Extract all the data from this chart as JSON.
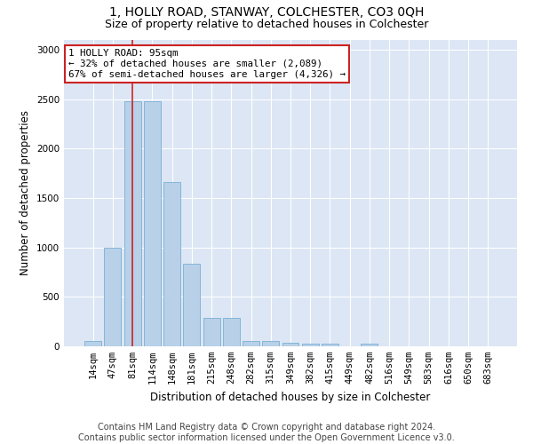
{
  "title": "1, HOLLY ROAD, STANWAY, COLCHESTER, CO3 0QH",
  "subtitle": "Size of property relative to detached houses in Colchester",
  "xlabel": "Distribution of detached houses by size in Colchester",
  "ylabel": "Number of detached properties",
  "footer_line1": "Contains HM Land Registry data © Crown copyright and database right 2024.",
  "footer_line2": "Contains public sector information licensed under the Open Government Licence v3.0.",
  "bar_labels": [
    "14sqm",
    "47sqm",
    "81sqm",
    "114sqm",
    "148sqm",
    "181sqm",
    "215sqm",
    "248sqm",
    "282sqm",
    "315sqm",
    "349sqm",
    "382sqm",
    "415sqm",
    "449sqm",
    "482sqm",
    "516sqm",
    "549sqm",
    "583sqm",
    "616sqm",
    "650sqm",
    "683sqm"
  ],
  "bar_values": [
    55,
    1000,
    2480,
    2480,
    1660,
    840,
    290,
    290,
    55,
    55,
    40,
    25,
    25,
    0,
    30,
    0,
    0,
    0,
    0,
    0,
    0
  ],
  "bar_color": "#b8d0e8",
  "bar_edge_color": "#7aafd4",
  "highlight_color": "#cc2222",
  "annotation_text": "1 HOLLY ROAD: 95sqm\n← 32% of detached houses are smaller (2,089)\n67% of semi-detached houses are larger (4,326) →",
  "annotation_box_facecolor": "#ffffff",
  "annotation_box_edgecolor": "#cc2222",
  "vline_x_index": 2,
  "ylim": [
    0,
    3100
  ],
  "yticks": [
    0,
    500,
    1000,
    1500,
    2000,
    2500,
    3000
  ],
  "fig_bg_color": "#ffffff",
  "plot_bg_color": "#dce6f5",
  "title_fontsize": 10,
  "subtitle_fontsize": 9,
  "xlabel_fontsize": 8.5,
  "ylabel_fontsize": 8.5,
  "tick_fontsize": 7.5,
  "footer_fontsize": 7,
  "annot_fontsize": 7.8
}
